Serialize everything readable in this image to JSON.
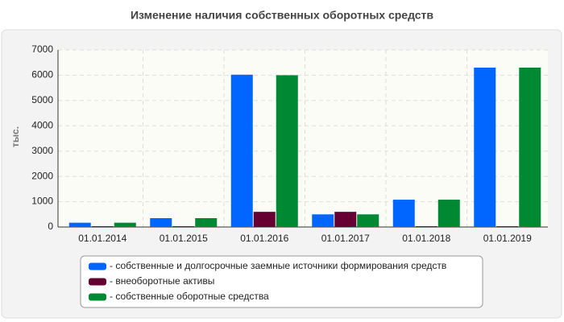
{
  "chart_data": {
    "type": "bar",
    "title": "Изменение наличия собственных оборотных средств",
    "y_label": "тыс.",
    "categories": [
      "01.01.2014",
      "01.01.2015",
      "01.01.2016",
      "01.01.2017",
      "01.01.2018",
      "01.01.2019"
    ],
    "series": [
      {
        "name": "- собственные и долгосрочные заемные источники формирования средств",
        "color": "#0066ff",
        "values": [
          170,
          350,
          6020,
          500,
          1080,
          6300
        ]
      },
      {
        "name": "- внеоборотные активы",
        "color": "#660033",
        "values": [
          30,
          30,
          600,
          600,
          30,
          30
        ]
      },
      {
        "name": "- собственные оборотные средства",
        "color": "#008833",
        "values": [
          170,
          350,
          6000,
          500,
          1080,
          6300
        ]
      }
    ],
    "ylim": [
      0,
      7000
    ],
    "yticks": [
      0,
      1000,
      2000,
      3000,
      4000,
      5000,
      6000,
      7000
    ],
    "grid": true
  }
}
